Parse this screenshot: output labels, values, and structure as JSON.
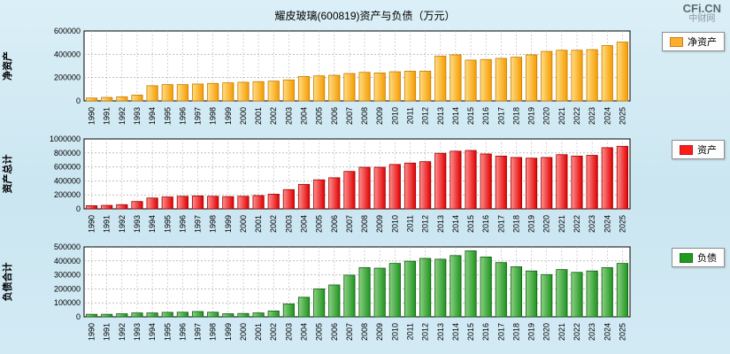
{
  "header": {
    "title": "耀皮玻璃(600819)资产与负债（万元）",
    "logo_main": "CFi.CN",
    "logo_sub": "中财网"
  },
  "chart_data": [
    {
      "type": "bar",
      "name": "net-assets",
      "ylabel": "净资产",
      "legend": "净资产",
      "swatch": "#FFAE2B",
      "bar_light": "#FFDE85",
      "bar_dark": "#F59B00",
      "bar_border": "#C87D00",
      "ylim": [
        0,
        600000
      ],
      "yticks": [
        0,
        200000,
        400000,
        600000
      ],
      "grid": true,
      "legend_position": "right",
      "categories": [
        "1990",
        "1991",
        "1992",
        "1993",
        "1994",
        "1995",
        "1996",
        "1997",
        "1998",
        "1999",
        "2000",
        "2001",
        "2002",
        "2003",
        "2004",
        "2005",
        "2006",
        "2007",
        "2008",
        "2009",
        "2010",
        "2011",
        "2012",
        "2013",
        "2014",
        "2015",
        "2016",
        "2017",
        "2018",
        "2019",
        "2020",
        "2021",
        "2022",
        "2023",
        "2024",
        "2025"
      ],
      "values": [
        25000,
        30000,
        35000,
        50000,
        130000,
        140000,
        140000,
        145000,
        150000,
        155000,
        160000,
        165000,
        170000,
        180000,
        210000,
        215000,
        220000,
        235000,
        245000,
        240000,
        250000,
        255000,
        255000,
        385000,
        395000,
        350000,
        355000,
        365000,
        375000,
        395000,
        425000,
        435000,
        435000,
        440000,
        475000,
        505000
      ]
    },
    {
      "type": "bar",
      "name": "total-assets",
      "ylabel": "资产总计",
      "legend": "资产",
      "swatch": "#FF1A1A",
      "bar_light": "#FF9090",
      "bar_dark": "#E00000",
      "bar_border": "#A00000",
      "ylim": [
        0,
        1000000
      ],
      "yticks": [
        0,
        200000,
        400000,
        600000,
        800000,
        1000000
      ],
      "grid": true,
      "legend_position": "right",
      "categories": [
        "1990",
        "1991",
        "1992",
        "1993",
        "1994",
        "1995",
        "1996",
        "1997",
        "1998",
        "1999",
        "2000",
        "2001",
        "2002",
        "2003",
        "2004",
        "2005",
        "2006",
        "2007",
        "2008",
        "2009",
        "2010",
        "2011",
        "2012",
        "2013",
        "2014",
        "2015",
        "2016",
        "2017",
        "2018",
        "2019",
        "2020",
        "2021",
        "2022",
        "2023",
        "2024",
        "2025"
      ],
      "values": [
        45000,
        50000,
        60000,
        105000,
        155000,
        170000,
        180000,
        185000,
        180000,
        175000,
        180000,
        190000,
        210000,
        275000,
        350000,
        415000,
        445000,
        535000,
        595000,
        595000,
        635000,
        655000,
        675000,
        795000,
        825000,
        835000,
        785000,
        755000,
        735000,
        725000,
        735000,
        775000,
        755000,
        765000,
        875000,
        895000
      ]
    },
    {
      "type": "bar",
      "name": "liabilities",
      "ylabel": "负债合计",
      "legend": "负债",
      "swatch": "#1F9A1F",
      "bar_light": "#8CD284",
      "bar_dark": "#1F9320",
      "bar_border": "#115E11",
      "ylim": [
        0,
        500000
      ],
      "yticks": [
        0,
        100000,
        200000,
        300000,
        400000,
        500000
      ],
      "grid": true,
      "legend_position": "right",
      "categories": [
        "1990",
        "1991",
        "1992",
        "1993",
        "1994",
        "1995",
        "1996",
        "1997",
        "1998",
        "1999",
        "2000",
        "2001",
        "2002",
        "2003",
        "2004",
        "2005",
        "2006",
        "2007",
        "2008",
        "2009",
        "2010",
        "2011",
        "2012",
        "2013",
        "2014",
        "2015",
        "2016",
        "2017",
        "2018",
        "2019",
        "2020",
        "2021",
        "2022",
        "2023",
        "2024",
        "2025"
      ],
      "values": [
        18000,
        18000,
        22000,
        28000,
        28000,
        32000,
        33000,
        38000,
        33000,
        22000,
        24000,
        28000,
        42000,
        92000,
        140000,
        200000,
        228000,
        298000,
        352000,
        348000,
        382000,
        398000,
        418000,
        412000,
        438000,
        472000,
        428000,
        388000,
        358000,
        328000,
        302000,
        338000,
        318000,
        328000,
        352000,
        382000
      ]
    }
  ]
}
